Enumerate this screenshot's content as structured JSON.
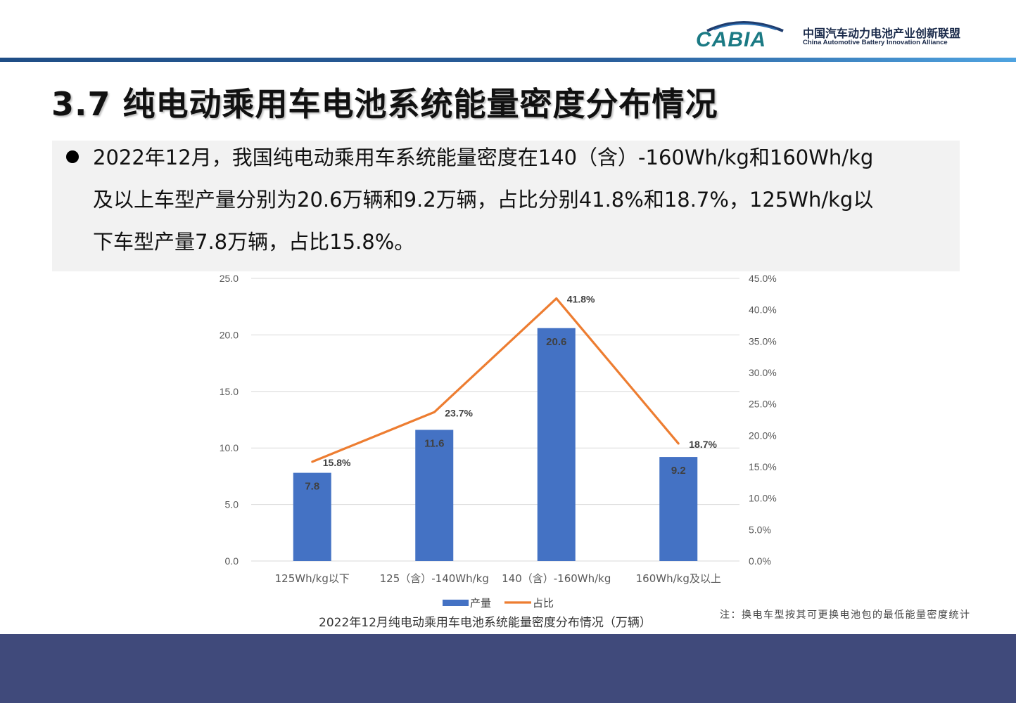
{
  "header": {
    "logo_text": "CABIA",
    "org_name_cn": "中国汽车动力电池产业创新联盟",
    "org_name_en": "China Automotive Battery Innovation Alliance"
  },
  "title": "3.7 纯电动乘用车电池系统能量密度分布情况",
  "bullet": {
    "line1": "2022年12月，我国纯电动乘用车系统能量密度在140（含）-160Wh/kg和160Wh/kg",
    "line2": "及以上车型产量分别为20.6万辆和9.2万辆，占比分别41.8%和18.7%，125Wh/kg以",
    "line3": "下车型产量7.8万辆，占比15.8%。"
  },
  "chart_data": {
    "type": "bar",
    "categories": [
      "125Wh/kg以下",
      "125（含）-140Wh/kg",
      "140（含）-160Wh/kg",
      "160Wh/kg及以上"
    ],
    "series": [
      {
        "name": "产量",
        "type": "bar",
        "axis": "left",
        "values": [
          7.8,
          11.6,
          20.6,
          9.2
        ],
        "color": "#4472c4",
        "labels": [
          "7.8",
          "11.6",
          "20.6",
          "9.2"
        ]
      },
      {
        "name": "占比",
        "type": "line",
        "axis": "right",
        "values": [
          15.8,
          23.7,
          41.8,
          18.7
        ],
        "color": "#ed7d31",
        "labels": [
          "15.8%",
          "23.7%",
          "41.8%",
          "18.7%"
        ]
      }
    ],
    "ylim_left": [
      0,
      25
    ],
    "yticks_left": [
      "0.0",
      "5.0",
      "10.0",
      "15.0",
      "20.0",
      "25.0"
    ],
    "ylim_right": [
      0,
      45
    ],
    "yticks_right": [
      "0.0%",
      "5.0%",
      "10.0%",
      "15.0%",
      "20.0%",
      "25.0%",
      "30.0%",
      "35.0%",
      "40.0%",
      "45.0%"
    ],
    "grid": true,
    "legend_position": "bottom"
  },
  "caption": "2022年12月纯电动乘用车电池系统能量密度分布情况（万辆）",
  "note": "注：换电车型按其可更换电池包的最低能量密度统计",
  "colors": {
    "bar": "#4472c4",
    "line": "#ed7d31",
    "header_line": "#1f4e86",
    "footer": "#404a7b",
    "bullet_bg": "#f2f2f2"
  }
}
